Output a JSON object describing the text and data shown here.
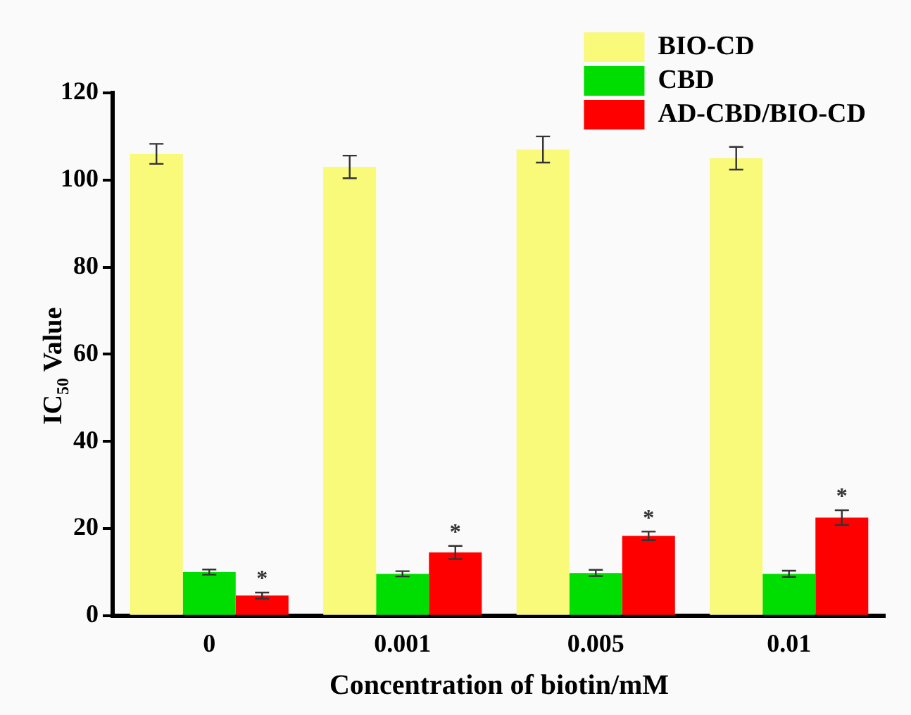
{
  "chart_data": {
    "type": "bar",
    "xlabel": "Concentration of biotin/mM",
    "ylabel": "IC$_{50}$ Value",
    "categories": [
      "0",
      "0.001",
      "0.005",
      "0.01"
    ],
    "series": [
      {
        "name": "BIO-CD",
        "color": "#f9f97a",
        "values": [
          106,
          103,
          107,
          105
        ],
        "errors": [
          2.3,
          2.6,
          3,
          2.6
        ]
      },
      {
        "name": "CBD",
        "color": "#00dd00",
        "values": [
          10,
          9.6,
          9.8,
          9.6
        ],
        "errors": [
          0.6,
          0.6,
          0.7,
          0.7
        ]
      },
      {
        "name": "AD-CBD/BIO-CD",
        "color": "#ff0000",
        "values": [
          4.6,
          14.5,
          18.3,
          22.5
        ],
        "errors": [
          0.7,
          1.5,
          1,
          1.7
        ]
      }
    ],
    "ylim": [
      0,
      120
    ],
    "yticks": [
      0,
      20,
      40,
      60,
      80,
      100,
      120
    ],
    "annotations": [
      "*",
      "*",
      "*",
      "*"
    ],
    "grid": false,
    "legend": "top right"
  }
}
